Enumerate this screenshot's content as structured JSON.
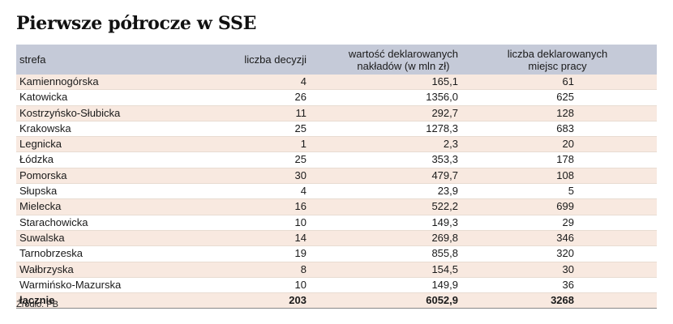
{
  "title": "Pierwsze półrocze w SSE",
  "table": {
    "headers": {
      "zone": "strefa",
      "decisions": "liczba decyzji",
      "investment_line1": "wartość deklarowanych",
      "investment_line2": "nakładów (w mln zł)",
      "jobs_line1": "liczba deklarowanych",
      "jobs_line2": "miejsc pracy"
    },
    "rows": [
      {
        "zone": "Kamiennogórska",
        "decisions": "4",
        "investment": "165,1",
        "jobs": "61"
      },
      {
        "zone": "Katowicka",
        "decisions": "26",
        "investment": "1356,0",
        "jobs": "625"
      },
      {
        "zone": "Kostrzyńsko-Słubicka",
        "decisions": "11",
        "investment": "292,7",
        "jobs": "128"
      },
      {
        "zone": "Krakowska",
        "decisions": "25",
        "investment": "1278,3",
        "jobs": "683"
      },
      {
        "zone": "Legnicka",
        "decisions": "1",
        "investment": "2,3",
        "jobs": "20"
      },
      {
        "zone": "Łódzka",
        "decisions": "25",
        "investment": "353,3",
        "jobs": "178"
      },
      {
        "zone": "Pomorska",
        "decisions": "30",
        "investment": "479,7",
        "jobs": "108"
      },
      {
        "zone": "Słupska",
        "decisions": "4",
        "investment": "23,9",
        "jobs": "5"
      },
      {
        "zone": "Mielecka",
        "decisions": "16",
        "investment": "522,2",
        "jobs": "699"
      },
      {
        "zone": "Starachowicka",
        "decisions": "10",
        "investment": "149,3",
        "jobs": "29"
      },
      {
        "zone": "Suwalska",
        "decisions": "14",
        "investment": "269,8",
        "jobs": "346"
      },
      {
        "zone": "Tarnobrzeska",
        "decisions": "19",
        "investment": "855,8",
        "jobs": "320"
      },
      {
        "zone": "Wałbrzyska",
        "decisions": "8",
        "investment": "154,5",
        "jobs": "30"
      },
      {
        "zone": "Warmińsko-Mazurska",
        "decisions": "10",
        "investment": "149,9",
        "jobs": "36"
      }
    ],
    "total": {
      "label": "łącznie",
      "decisions": "203",
      "investment": "6052,9",
      "jobs": "3268"
    }
  },
  "source": "Źródło: PB",
  "colors": {
    "header_bg": "#c5cad8",
    "stripe_bg": "#f8e9e0"
  }
}
